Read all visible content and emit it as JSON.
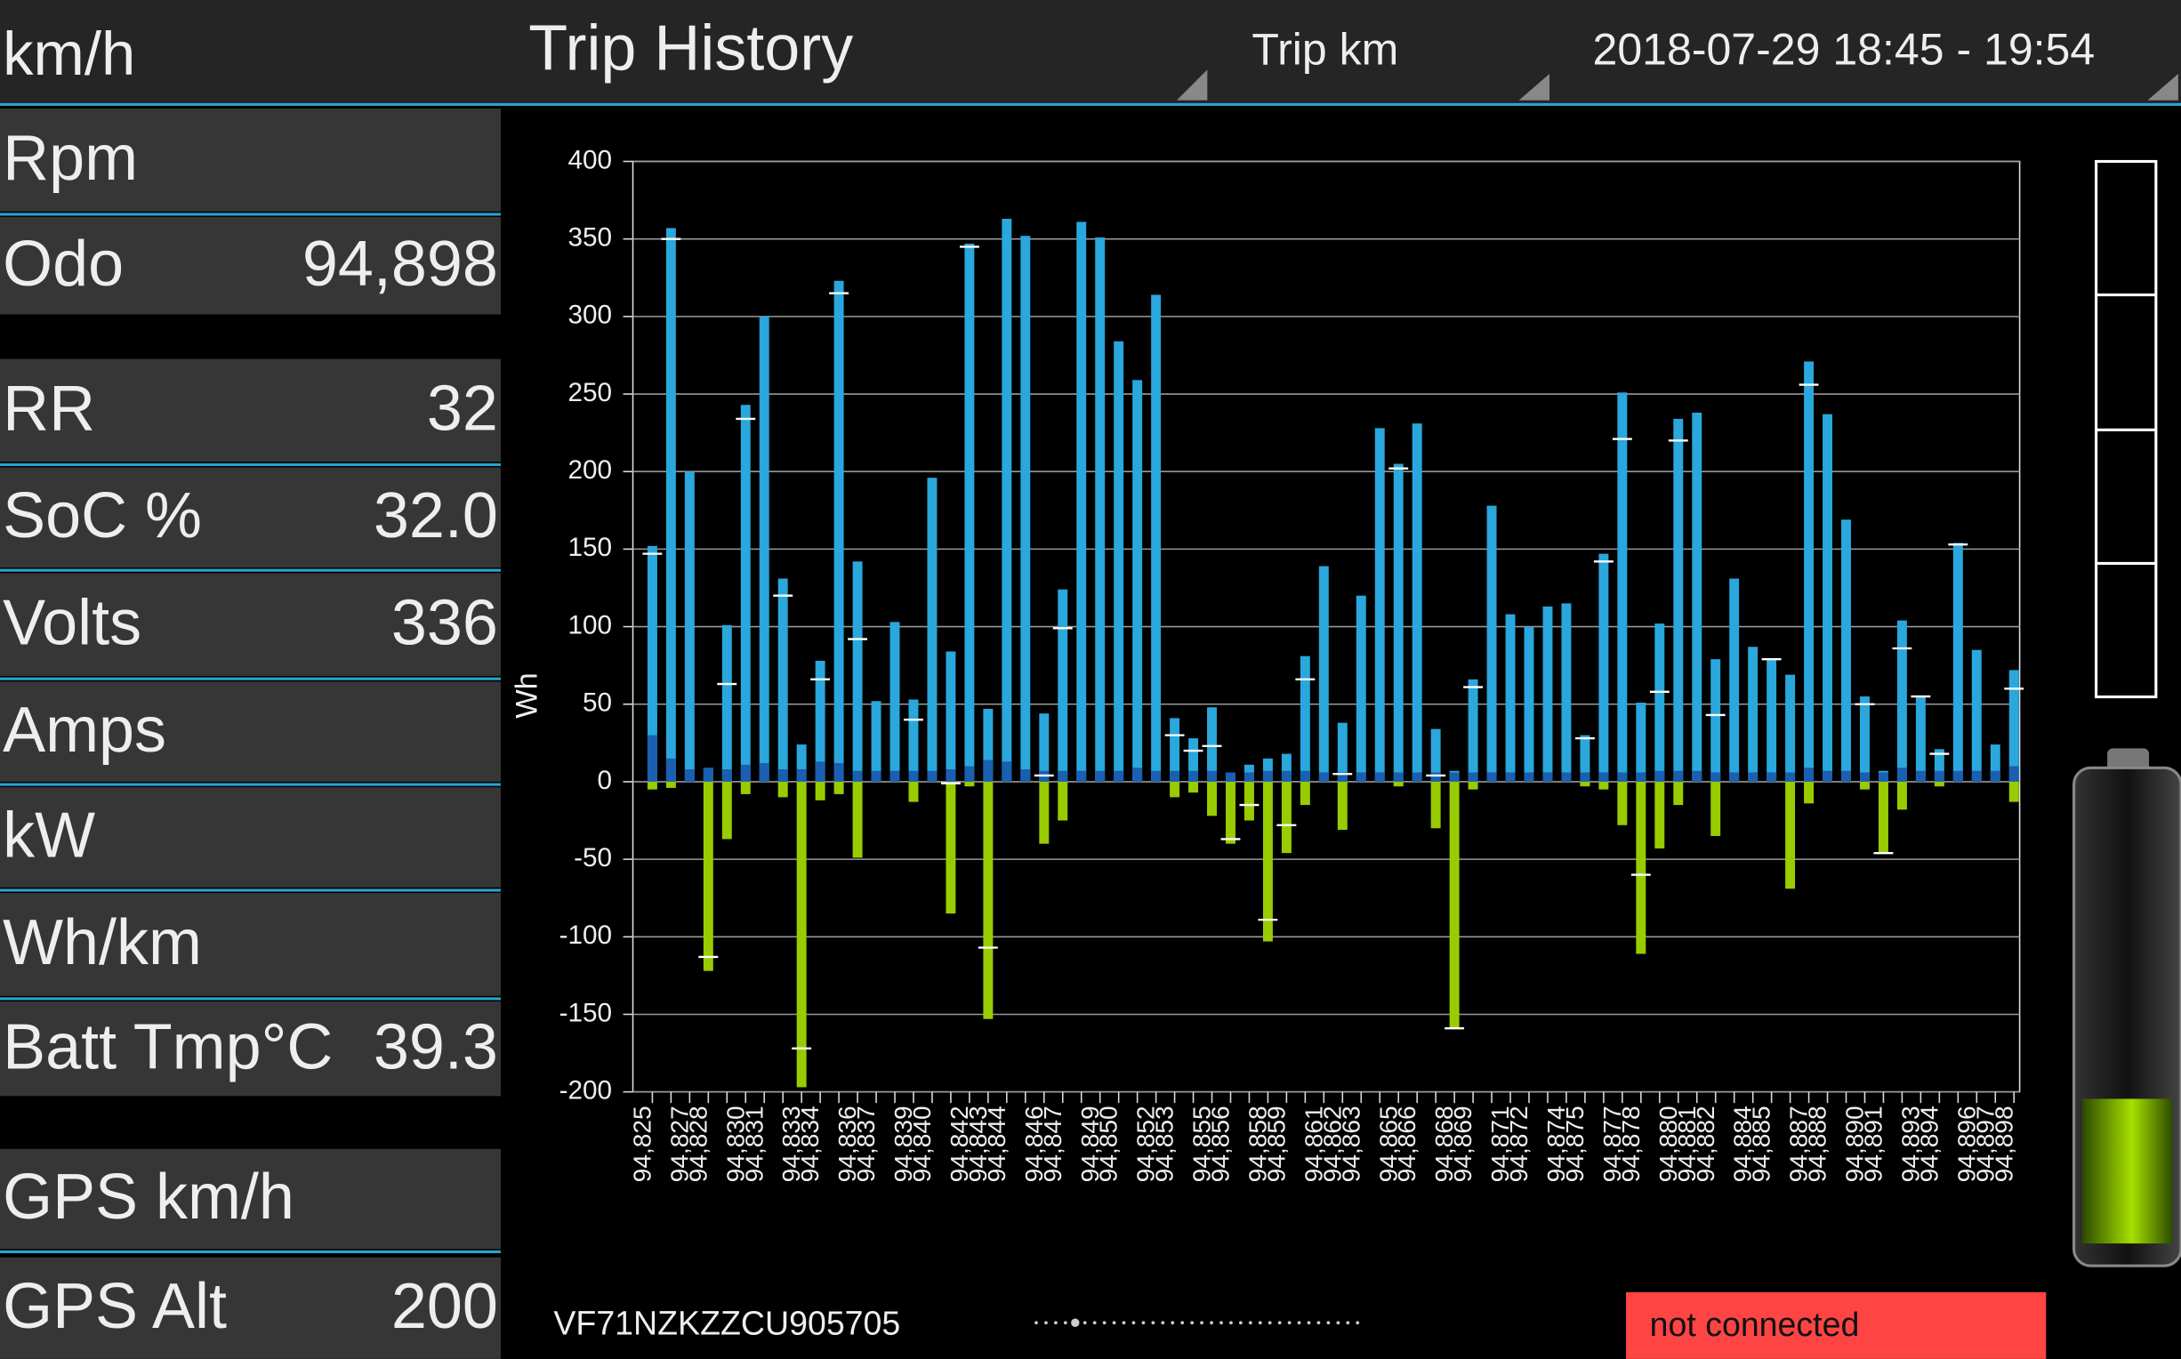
{
  "header": {
    "left": "km/h",
    "title": "Trip History",
    "mode": "Trip km",
    "range": "2018-07-29 18:45 - 19:54"
  },
  "panel": [
    {
      "label": "Rpm"
    },
    {
      "label": "Odo",
      "value": "94,898"
    },
    {
      "label": "RR",
      "value": "32"
    },
    {
      "label": "SoC %",
      "value": "32.0"
    },
    {
      "label": "Volts",
      "value": "336"
    },
    {
      "label": "Amps"
    },
    {
      "label": "kW"
    },
    {
      "label": "Wh/km"
    },
    {
      "label": "Batt Tmp°C",
      "value": "39.3"
    },
    {
      "label": "GPS km/h"
    },
    {
      "label": "GPS Alt",
      "value": "200"
    }
  ],
  "footer": {
    "vin": "VF71NZKZZCU905705",
    "status": "not connected"
  },
  "chart_data": {
    "type": "bar",
    "ylabel": "Wh",
    "categories": [
      "94,825",
      null,
      "94,827",
      "94,828",
      null,
      "94,830",
      "94,831",
      null,
      "94,833",
      "94,834",
      null,
      "94,836",
      "94,837",
      null,
      "94,839",
      "94,840",
      null,
      "94,842",
      "94,843",
      "94,844",
      null,
      "94,846",
      "94,847",
      null,
      "94,849",
      "94,850",
      null,
      "94,852",
      "94,853",
      null,
      "94,855",
      "94,856",
      null,
      "94,858",
      "94,859",
      null,
      "94,861",
      "94,862",
      "94,863",
      null,
      "94,865",
      "94,866",
      null,
      "94,868",
      "94,869",
      null,
      "94,871",
      "94,872",
      null,
      "94,874",
      "94,875",
      null,
      "94,877",
      "94,878",
      null,
      "94,880",
      "94,881",
      "94,882",
      null,
      "94,884",
      "94,885",
      null,
      "94,887",
      "94,888",
      null,
      "94,890",
      "94,891",
      null,
      "94,893",
      "94,894",
      null,
      "94,896",
      "94,897",
      "94,898"
    ],
    "series": [
      {
        "color": "#2aa7dc",
        "values": [
          152,
          357,
          200,
          9,
          101,
          243,
          300,
          131,
          24,
          78,
          323,
          142,
          52,
          103,
          53,
          196,
          84,
          347,
          47,
          363,
          352,
          44,
          124,
          361,
          351,
          284,
          259,
          314,
          41,
          28,
          48,
          6,
          11,
          15,
          18,
          81,
          139,
          38,
          120,
          228,
          205,
          231,
          34,
          7,
          66,
          178,
          108,
          100,
          113,
          115,
          30,
          147,
          251,
          51,
          102,
          234,
          238,
          79,
          131,
          87,
          79,
          69,
          271,
          237,
          169,
          55,
          7,
          104,
          55,
          21,
          154,
          85,
          24,
          72
        ]
      },
      {
        "color": "#1a5fb0",
        "values": [
          30,
          15,
          8,
          9,
          8,
          11,
          12,
          8,
          8,
          13,
          12,
          7,
          7,
          7,
          7,
          7,
          8,
          10,
          14,
          13,
          8,
          7,
          7,
          7,
          7,
          7,
          9,
          7,
          7,
          7,
          7,
          6,
          6,
          7,
          7,
          7,
          6,
          6,
          6,
          6,
          6,
          6,
          6,
          6,
          6,
          6,
          6,
          6,
          6,
          6,
          6,
          6,
          6,
          6,
          7,
          7,
          7,
          6,
          6,
          6,
          6,
          6,
          9,
          7,
          7,
          6,
          6,
          9,
          7,
          7,
          7,
          7,
          7,
          10
        ]
      },
      {
        "color": "#99cc00",
        "values": [
          -5,
          -4,
          0,
          -122,
          -37,
          -8,
          0,
          -10,
          -197,
          -12,
          -8,
          -49,
          0,
          0,
          -13,
          0,
          -85,
          -3,
          -153,
          0,
          0,
          -40,
          -25,
          0,
          0,
          0,
          0,
          0,
          -10,
          -7,
          -22,
          -40,
          -25,
          -103,
          -46,
          -15,
          0,
          -31,
          0,
          0,
          -3,
          0,
          -30,
          -159,
          -5,
          0,
          0,
          0,
          0,
          0,
          -3,
          -5,
          -28,
          -111,
          -43,
          -15,
          0,
          -35,
          0,
          0,
          0,
          -69,
          -14,
          0,
          0,
          -5,
          -46,
          -18,
          0,
          -3,
          0,
          0,
          0,
          -13
        ]
      },
      {
        "color": "#ffffff",
        "values": [
          147,
          350,
          null,
          -113,
          63,
          234,
          null,
          120,
          -172,
          66,
          315,
          92,
          null,
          null,
          40,
          null,
          -1,
          345,
          -107,
          null,
          null,
          4,
          99,
          null,
          null,
          null,
          null,
          null,
          30,
          20,
          23,
          -37,
          -15,
          -89,
          -28,
          66,
          null,
          5,
          null,
          null,
          202,
          null,
          4,
          -159,
          61,
          null,
          null,
          null,
          null,
          null,
          28,
          142,
          221,
          -60,
          58,
          220,
          null,
          43,
          null,
          null,
          79,
          null,
          256,
          null,
          null,
          50,
          -46,
          86,
          55,
          18,
          153,
          null,
          null,
          60
        ]
      }
    ],
    "ylim": [
      -200,
      400
    ],
    "yticks": [
      -200,
      -150,
      -100,
      -50,
      0,
      50,
      100,
      150,
      200,
      250,
      300,
      350,
      400
    ],
    "grid": true
  }
}
